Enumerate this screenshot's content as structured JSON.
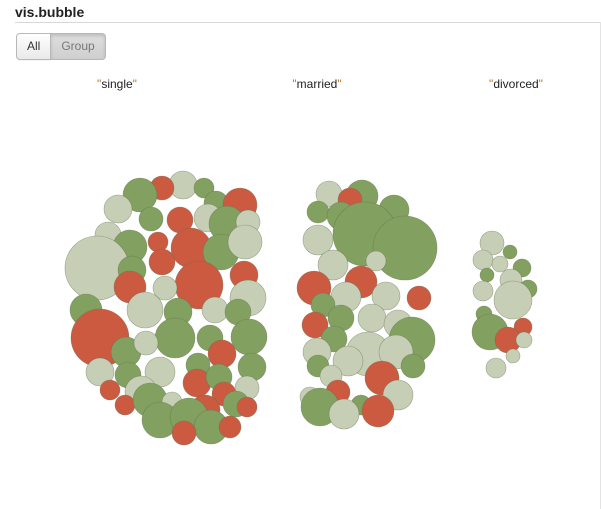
{
  "header": {
    "title": "vis.bubble"
  },
  "toolbar": {
    "all_label": "All",
    "group_label": "Group",
    "active": "Group"
  },
  "groups": [
    {
      "label": "\"single\""
    },
    {
      "label": "\"married\""
    },
    {
      "label": "\"divorced\""
    }
  ],
  "colors": {
    "green": "#82a05f",
    "red": "#cc5a41",
    "light": "#c6cfb5",
    "stroke": "#5f6e4f"
  }
}
